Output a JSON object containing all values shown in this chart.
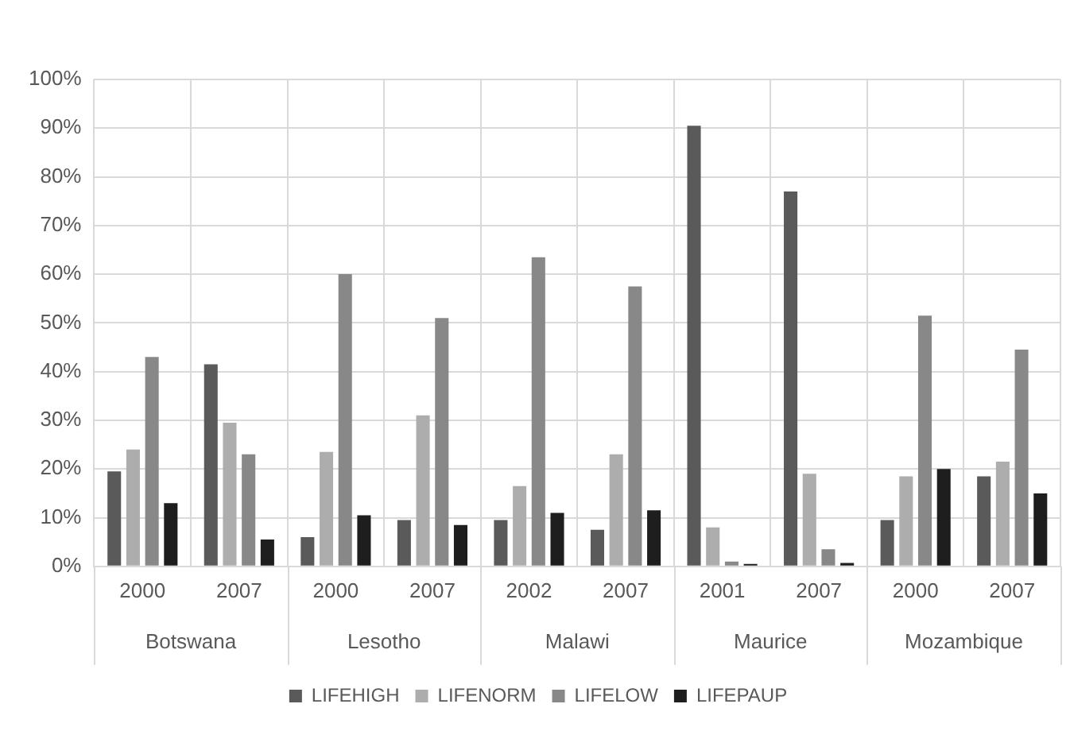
{
  "chart_data": {
    "type": "bar",
    "categories": [
      "2000",
      "2007",
      "2000",
      "2007",
      "2002",
      "2007",
      "2001",
      "2007",
      "2000",
      "2007"
    ],
    "annotations": [
      "Botswana",
      "Lesotho",
      "Malawi",
      "Maurice",
      "Mozambique"
    ],
    "series": [
      {
        "name": "LIFEHIGH",
        "color": "#5a5a5a",
        "values": [
          19.5,
          41.5,
          6,
          9.5,
          9.5,
          7.5,
          90.5,
          77,
          9.5,
          18.5
        ]
      },
      {
        "name": "LIFENORM",
        "color": "#adadad",
        "values": [
          24,
          29.5,
          23.5,
          31,
          16.5,
          23,
          8,
          19,
          18.5,
          21.5
        ]
      },
      {
        "name": "LIFELOW",
        "color": "#888888",
        "values": [
          43,
          23,
          60,
          51,
          63.5,
          57.5,
          1,
          3.5,
          51.5,
          44.5
        ]
      },
      {
        "name": "LIFEPAUP",
        "color": "#1e1e1e",
        "values": [
          13,
          5.5,
          10.5,
          8.5,
          11,
          11.5,
          0.5,
          0.7,
          20,
          15
        ]
      }
    ],
    "ylim": [
      0,
      100
    ],
    "yticks": [
      {
        "value": 0,
        "label": "0%"
      },
      {
        "value": 10,
        "label": "10%"
      },
      {
        "value": 20,
        "label": "20%"
      },
      {
        "value": 30,
        "label": "30%"
      },
      {
        "value": 40,
        "label": "40%"
      },
      {
        "value": 50,
        "label": "50%"
      },
      {
        "value": 60,
        "label": "60%"
      },
      {
        "value": 70,
        "label": "70%"
      },
      {
        "value": 80,
        "label": "80%"
      },
      {
        "value": 90,
        "label": "90%"
      },
      {
        "value": 100,
        "label": "100%"
      }
    ],
    "grid": true,
    "legend": "bottom"
  }
}
